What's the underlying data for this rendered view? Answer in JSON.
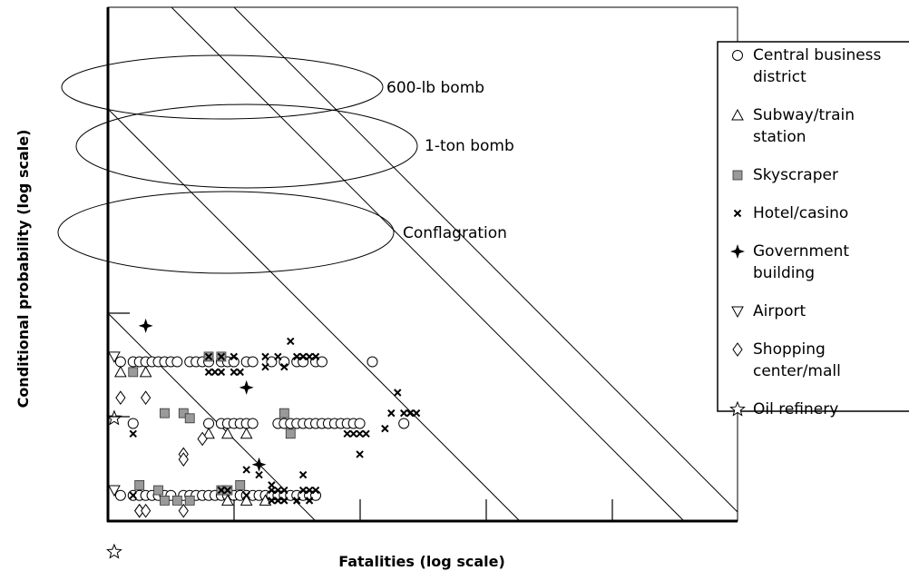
{
  "chart_data": {
    "type": "scatter",
    "xlabel": "Fatalities (log scale)",
    "ylabel": "Conditional probability (log scale)",
    "x_scale": "log",
    "y_scale": "log",
    "grid": false,
    "legend_position": "right",
    "ellipse_labels": [
      {
        "text": "600-lb bomb"
      },
      {
        "text": "1-ton bomb"
      },
      {
        "text": "Conflagration"
      }
    ],
    "legend": [
      {
        "key": "cbd",
        "marker": "circle",
        "lines": [
          "Central business",
          "district"
        ]
      },
      {
        "key": "subway",
        "marker": "triangle-up",
        "lines": [
          "Subway/train",
          "station"
        ]
      },
      {
        "key": "sky",
        "marker": "square-gray",
        "lines": [
          "Skyscraper"
        ]
      },
      {
        "key": "hotel",
        "marker": "x",
        "lines": [
          "Hotel/casino"
        ]
      },
      {
        "key": "gov",
        "marker": "four-point-star",
        "lines": [
          "Government",
          "building"
        ]
      },
      {
        "key": "airport",
        "marker": "triangle-down",
        "lines": [
          "Airport"
        ]
      },
      {
        "key": "mall",
        "marker": "diamond",
        "lines": [
          "Shopping",
          "center/mall"
        ]
      },
      {
        "key": "oil",
        "marker": "star",
        "lines": [
          "Oil refinery"
        ]
      }
    ],
    "series": [
      {
        "key": "cbd",
        "points": [
          [
            0.02,
            0.31
          ],
          [
            0.04,
            0.31
          ],
          [
            0.05,
            0.31
          ],
          [
            0.06,
            0.31
          ],
          [
            0.07,
            0.31
          ],
          [
            0.08,
            0.31
          ],
          [
            0.09,
            0.31
          ],
          [
            0.1,
            0.31
          ],
          [
            0.11,
            0.31
          ],
          [
            0.13,
            0.31
          ],
          [
            0.14,
            0.31
          ],
          [
            0.15,
            0.31
          ],
          [
            0.16,
            0.31
          ],
          [
            0.18,
            0.31
          ],
          [
            0.19,
            0.31
          ],
          [
            0.2,
            0.31
          ],
          [
            0.22,
            0.31
          ],
          [
            0.23,
            0.31
          ],
          [
            0.26,
            0.31
          ],
          [
            0.28,
            0.31
          ],
          [
            0.3,
            0.31
          ],
          [
            0.31,
            0.31
          ],
          [
            0.33,
            0.31
          ],
          [
            0.34,
            0.31
          ],
          [
            0.42,
            0.31
          ],
          [
            0.04,
            0.19
          ],
          [
            0.16,
            0.19
          ],
          [
            0.18,
            0.19
          ],
          [
            0.19,
            0.19
          ],
          [
            0.2,
            0.19
          ],
          [
            0.21,
            0.19
          ],
          [
            0.22,
            0.19
          ],
          [
            0.23,
            0.19
          ],
          [
            0.27,
            0.19
          ],
          [
            0.28,
            0.19
          ],
          [
            0.29,
            0.19
          ],
          [
            0.3,
            0.19
          ],
          [
            0.31,
            0.19
          ],
          [
            0.32,
            0.19
          ],
          [
            0.33,
            0.19
          ],
          [
            0.34,
            0.19
          ],
          [
            0.35,
            0.19
          ],
          [
            0.36,
            0.19
          ],
          [
            0.37,
            0.19
          ],
          [
            0.38,
            0.19
          ],
          [
            0.39,
            0.19
          ],
          [
            0.4,
            0.19
          ],
          [
            0.47,
            0.19
          ],
          [
            0.02,
            0.05
          ],
          [
            0.04,
            0.05
          ],
          [
            0.05,
            0.05
          ],
          [
            0.06,
            0.05
          ],
          [
            0.07,
            0.05
          ],
          [
            0.08,
            0.05
          ],
          [
            0.09,
            0.05
          ],
          [
            0.1,
            0.05
          ],
          [
            0.12,
            0.05
          ],
          [
            0.13,
            0.05
          ],
          [
            0.14,
            0.05
          ],
          [
            0.15,
            0.05
          ],
          [
            0.16,
            0.05
          ],
          [
            0.17,
            0.05
          ],
          [
            0.18,
            0.05
          ],
          [
            0.19,
            0.05
          ],
          [
            0.2,
            0.05
          ],
          [
            0.21,
            0.05
          ],
          [
            0.22,
            0.05
          ],
          [
            0.23,
            0.05
          ],
          [
            0.24,
            0.05
          ],
          [
            0.25,
            0.05
          ],
          [
            0.26,
            0.05
          ],
          [
            0.27,
            0.05
          ],
          [
            0.28,
            0.05
          ],
          [
            0.29,
            0.05
          ],
          [
            0.3,
            0.05
          ],
          [
            0.31,
            0.05
          ],
          [
            0.32,
            0.05
          ],
          [
            0.33,
            0.05
          ]
        ]
      },
      {
        "key": "subway",
        "points": [
          [
            0.02,
            0.29
          ],
          [
            0.06,
            0.29
          ],
          [
            0.16,
            0.17
          ],
          [
            0.19,
            0.17
          ],
          [
            0.22,
            0.17
          ],
          [
            0.19,
            0.04
          ],
          [
            0.22,
            0.04
          ],
          [
            0.25,
            0.04
          ]
        ]
      },
      {
        "key": "sky",
        "points": [
          [
            0.04,
            0.29
          ],
          [
            0.16,
            0.32
          ],
          [
            0.18,
            0.32
          ],
          [
            0.09,
            0.21
          ],
          [
            0.12,
            0.21
          ],
          [
            0.13,
            0.2
          ],
          [
            0.28,
            0.21
          ],
          [
            0.29,
            0.17
          ],
          [
            0.05,
            0.07
          ],
          [
            0.08,
            0.06
          ],
          [
            0.09,
            0.04
          ],
          [
            0.11,
            0.04
          ],
          [
            0.13,
            0.04
          ],
          [
            0.18,
            0.06
          ],
          [
            0.19,
            0.06
          ],
          [
            0.21,
            0.07
          ]
        ]
      },
      {
        "key": "hotel",
        "points": [
          [
            0.16,
            0.32
          ],
          [
            0.18,
            0.32
          ],
          [
            0.2,
            0.32
          ],
          [
            0.25,
            0.32
          ],
          [
            0.27,
            0.32
          ],
          [
            0.29,
            0.35
          ],
          [
            0.3,
            0.32
          ],
          [
            0.31,
            0.32
          ],
          [
            0.32,
            0.32
          ],
          [
            0.33,
            0.32
          ],
          [
            0.16,
            0.29
          ],
          [
            0.17,
            0.29
          ],
          [
            0.18,
            0.29
          ],
          [
            0.2,
            0.29
          ],
          [
            0.21,
            0.29
          ],
          [
            0.25,
            0.3
          ],
          [
            0.28,
            0.3
          ],
          [
            0.46,
            0.25
          ],
          [
            0.45,
            0.21
          ],
          [
            0.47,
            0.21
          ],
          [
            0.48,
            0.21
          ],
          [
            0.49,
            0.21
          ],
          [
            0.44,
            0.18
          ],
          [
            0.38,
            0.17
          ],
          [
            0.39,
            0.17
          ],
          [
            0.4,
            0.17
          ],
          [
            0.41,
            0.17
          ],
          [
            0.04,
            0.17
          ],
          [
            0.18,
            0.06
          ],
          [
            0.19,
            0.06
          ],
          [
            0.26,
            0.06
          ],
          [
            0.27,
            0.06
          ],
          [
            0.28,
            0.06
          ],
          [
            0.31,
            0.06
          ],
          [
            0.32,
            0.06
          ],
          [
            0.33,
            0.06
          ],
          [
            0.26,
            0.07
          ],
          [
            0.31,
            0.09
          ],
          [
            0.22,
            0.05
          ],
          [
            0.26,
            0.04
          ],
          [
            0.27,
            0.04
          ],
          [
            0.28,
            0.04
          ],
          [
            0.3,
            0.04
          ],
          [
            0.32,
            0.04
          ],
          [
            0.04,
            0.05
          ],
          [
            0.22,
            0.1
          ],
          [
            0.24,
            0.09
          ],
          [
            0.4,
            0.13
          ]
        ]
      },
      {
        "key": "gov",
        "points": [
          [
            0.06,
            0.38
          ],
          [
            0.22,
            0.26
          ],
          [
            0.24,
            0.11
          ]
        ]
      },
      {
        "key": "airport",
        "points": [
          [
            0.01,
            0.32
          ],
          [
            0.01,
            0.06
          ]
        ]
      },
      {
        "key": "mall",
        "points": [
          [
            0.02,
            0.24
          ],
          [
            0.06,
            0.24
          ],
          [
            0.12,
            0.13
          ],
          [
            0.12,
            0.12
          ],
          [
            0.15,
            0.16
          ],
          [
            0.05,
            0.02
          ],
          [
            0.05,
            0.02
          ],
          [
            0.06,
            0.02
          ],
          [
            0.12,
            0.02
          ]
        ]
      },
      {
        "key": "oil",
        "points": [
          [
            0.01,
            0.2
          ],
          [
            0.01,
            -0.06
          ]
        ]
      }
    ]
  }
}
